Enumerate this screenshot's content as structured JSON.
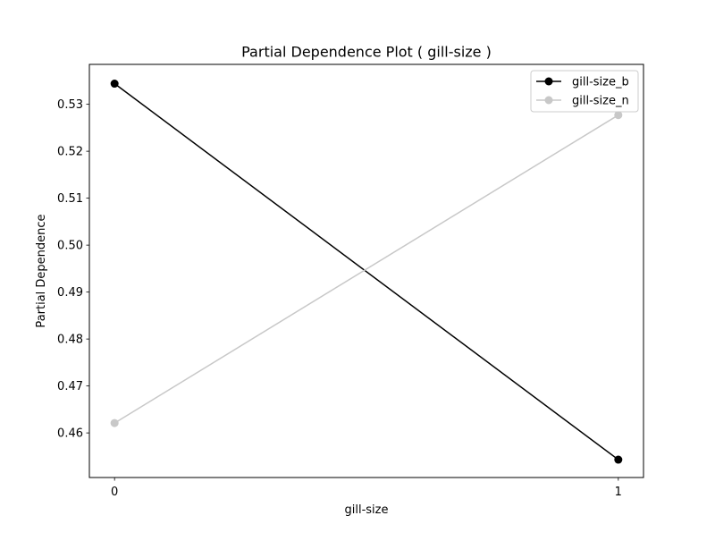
{
  "chart_data": {
    "type": "line",
    "title": "Partial Dependence Plot ( gill-size )",
    "xlabel": "gill-size",
    "ylabel": "Partial Dependence",
    "x": [
      0,
      1
    ],
    "xticks": [
      "0",
      "1"
    ],
    "xlim": [
      -0.05,
      1.05
    ],
    "ylim": [
      0.4505,
      0.5385
    ],
    "yticks": [
      "0.46",
      "0.47",
      "0.48",
      "0.49",
      "0.50",
      "0.51",
      "0.52",
      "0.53"
    ],
    "grid": false,
    "legend_position": "top-right",
    "series": [
      {
        "name": "gill-size_b",
        "values": [
          0.5344,
          0.4543
        ],
        "color": "#000000"
      },
      {
        "name": "gill-size_n",
        "values": [
          0.4621,
          0.5277
        ],
        "color": "#c8c8c8"
      }
    ]
  }
}
